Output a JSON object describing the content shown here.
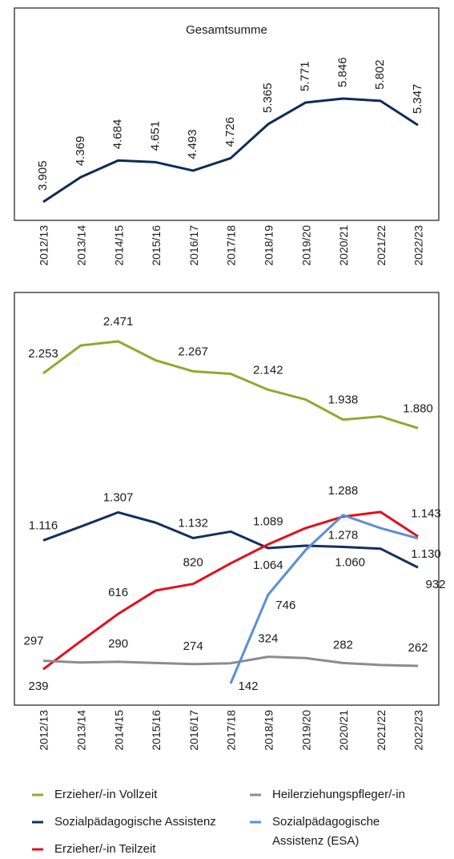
{
  "chart_data": [
    {
      "type": "line",
      "title": "Gesamtsumme",
      "categories": [
        "2012/13",
        "2013/14",
        "2014/15",
        "2015/16",
        "2016/17",
        "2017/18",
        "2018/19",
        "2019/20",
        "2020/21",
        "2021/22",
        "2022/23"
      ],
      "series": [
        {
          "name": "Gesamtsumme",
          "color": "#0f2a5a",
          "values": [
            3905,
            4369,
            4684,
            4651,
            4493,
            4726,
            5365,
            5771,
            5846,
            5802,
            5347
          ],
          "value_labels": [
            "3.905",
            "4.369",
            "4.684",
            "4.651",
            "4.493",
            "4.726",
            "5.365",
            "5.771",
            "5.846",
            "5.802",
            "5.347"
          ]
        }
      ]
    },
    {
      "type": "line",
      "categories": [
        "2012/13",
        "2013/14",
        "2014/15",
        "2015/16",
        "2016/17",
        "2017/18",
        "2018/19",
        "2019/20",
        "2020/21",
        "2021/22",
        "2022/23"
      ],
      "series": [
        {
          "name": "Erzieher/-in Vollzeit",
          "color": "#8cab2f",
          "values": [
            2253,
            2443,
            2471,
            2342,
            2267,
            2250,
            2142,
            2075,
            1938,
            1960,
            1880
          ],
          "value_labels": [
            "2.253",
            null,
            "2.471",
            null,
            "2.267",
            null,
            "2.142",
            null,
            "1.938",
            null,
            "1.880"
          ]
        },
        {
          "name": "Sozialpädagogische Assistenz",
          "color": "#14305e",
          "values": [
            1116,
            1210,
            1307,
            1237,
            1132,
            1176,
            1064,
            1080,
            1072,
            1060,
            932
          ],
          "value_labels": [
            "1.116",
            null,
            "1.307",
            null,
            "1.132",
            null,
            "1.064",
            null,
            null,
            "1.060",
            "932"
          ]
        },
        {
          "name": "Erzieher/-in Teilzeit",
          "color": "#e30f1c",
          "values": [
            239,
            430,
            616,
            775,
            820,
            960,
            1089,
            1200,
            1278,
            1310,
            1143
          ],
          "value_labels": [
            "239",
            null,
            "616",
            null,
            "820",
            null,
            "1.089",
            null,
            "1.278",
            null,
            "1.143"
          ]
        },
        {
          "name": "Heilerziehungspfleger/-in",
          "color": "#8c8c8c",
          "values": [
            297,
            285,
            290,
            282,
            274,
            280,
            324,
            315,
            282,
            268,
            262
          ],
          "value_labels": [
            "297",
            null,
            "290",
            null,
            "274",
            null,
            "324",
            null,
            "282",
            null,
            "262"
          ]
        },
        {
          "name": "Sozialpädagogische Assistenz (ESA)",
          "color": "#5b8fd6",
          "values": [
            null,
            null,
            null,
            null,
            null,
            142,
            746,
            1050,
            1288,
            1200,
            1130
          ],
          "value_labels": [
            null,
            null,
            null,
            null,
            null,
            "142",
            "746",
            null,
            "1.288",
            null,
            "1.130"
          ]
        }
      ]
    }
  ]
}
